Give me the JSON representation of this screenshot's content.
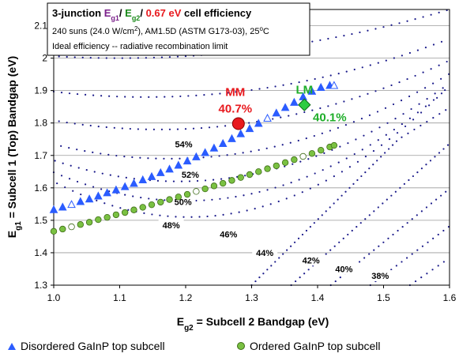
{
  "chart_data": {
    "type": "scatter",
    "title_parts": {
      "prefix": "3-junction ",
      "e": "E",
      "g1": "g1",
      "sep1": "/ ",
      "g2": "g2",
      "sep2": "/ ",
      "ev": "0.67 eV",
      "suffix": " cell efficiency"
    },
    "subtitle_line1": {
      "a": "240 suns (24.0 W/cm",
      "sup": "2",
      "b": "), AM1.5D (ASTM G173-03), 25",
      "deg": "o",
      "c": "C"
    },
    "subtitle_line2": "Ideal efficiency -- radiative recombination limit",
    "xlabel": {
      "a": "E",
      "sub": "g2",
      "b": " = Subcell 2 Bandgap  (eV)"
    },
    "ylabel": {
      "a": "E",
      "sub": "g1",
      "b": " = Subcell 1 (Top) Bandgap  (eV)"
    },
    "xlim": [
      1.0,
      1.6
    ],
    "ylim": [
      1.3,
      2.15
    ],
    "xticks": [
      "1.0",
      "1.1",
      "1.2",
      "1.3",
      "1.4",
      "1.5",
      "1.6"
    ],
    "yticks": [
      "1.3",
      "1.4",
      "1.5",
      "1.6",
      "1.7",
      "1.8",
      "1.9",
      "2",
      "2.1"
    ],
    "grid": "horizontal",
    "contour_labels": [
      {
        "text": "54%",
        "x": 1.197,
        "y": 1.728
      },
      {
        "text": "52%",
        "x": 1.207,
        "y": 1.634
      },
      {
        "text": "50%",
        "x": 1.196,
        "y": 1.55
      },
      {
        "text": "48%",
        "x": 1.178,
        "y": 1.478
      },
      {
        "text": "46%",
        "x": 1.265,
        "y": 1.45
      },
      {
        "text": "44%",
        "x": 1.32,
        "y": 1.393
      },
      {
        "text": "42%",
        "x": 1.39,
        "y": 1.37
      },
      {
        "text": "40%",
        "x": 1.44,
        "y": 1.343
      },
      {
        "text": "38%",
        "x": 1.495,
        "y": 1.322
      }
    ],
    "series": [
      {
        "name": "Disordered GaInP top subcell",
        "marker": "triangle",
        "color": "#2b5cff",
        "x": [
          1.0,
          1.0135,
          1.027,
          1.0405,
          1.054,
          1.0675,
          1.081,
          1.0945,
          1.108,
          1.1215,
          1.135,
          1.1485,
          1.162,
          1.1755,
          1.189,
          1.2025,
          1.216,
          1.2295,
          1.243,
          1.2565,
          1.27,
          1.2835,
          1.297,
          1.3105,
          1.324,
          1.3375,
          1.351,
          1.3645,
          1.378,
          1.3915,
          1.405,
          1.4185,
          1.425
        ],
        "y": [
          1.532,
          1.54,
          1.548,
          1.557,
          1.565,
          1.574,
          1.584,
          1.593,
          1.603,
          1.613,
          1.624,
          1.634,
          1.646,
          1.657,
          1.669,
          1.682,
          1.695,
          1.708,
          1.722,
          1.736,
          1.751,
          1.766,
          1.782,
          1.798,
          1.814,
          1.83,
          1.847,
          1.863,
          1.88,
          1.897,
          1.909,
          1.915,
          1.915
        ],
        "open_points": [
          2,
          24,
          32
        ]
      },
      {
        "name": "Ordered GaInP top subcell",
        "marker": "circle",
        "color": "#7ac142",
        "x": [
          1.0,
          1.0135,
          1.027,
          1.0405,
          1.054,
          1.0675,
          1.081,
          1.0945,
          1.108,
          1.1215,
          1.135,
          1.1485,
          1.162,
          1.1755,
          1.189,
          1.2025,
          1.216,
          1.2295,
          1.243,
          1.2565,
          1.27,
          1.2835,
          1.297,
          1.3105,
          1.324,
          1.3375,
          1.351,
          1.3645,
          1.378,
          1.3915,
          1.405,
          1.4185,
          1.425
        ],
        "y": [
          1.466,
          1.473,
          1.48,
          1.487,
          1.494,
          1.502,
          1.509,
          1.517,
          1.524,
          1.532,
          1.54,
          1.548,
          1.556,
          1.564,
          1.572,
          1.58,
          1.589,
          1.597,
          1.606,
          1.614,
          1.623,
          1.632,
          1.641,
          1.65,
          1.659,
          1.668,
          1.678,
          1.687,
          1.697,
          1.706,
          1.716,
          1.726,
          1.731
        ],
        "open_points": [
          2,
          16,
          28
        ]
      }
    ],
    "highlights": [
      {
        "label": "MM",
        "value_label": "40.7%",
        "x": 1.28,
        "y": 1.798,
        "marker": "circle",
        "color": "#e8191e"
      },
      {
        "label": "LM",
        "value_label": "40.1%",
        "x": 1.38,
        "y": 1.856,
        "marker": "diamond",
        "color": "#2ecc40"
      }
    ],
    "colors": {
      "title_g1": "#7a1f8a",
      "title_g2": "#1a8a1a",
      "title_ev": "#e8191e",
      "mm": "#e8191e",
      "lm": "#1fae2a",
      "contour": "#1a1a8a"
    }
  }
}
